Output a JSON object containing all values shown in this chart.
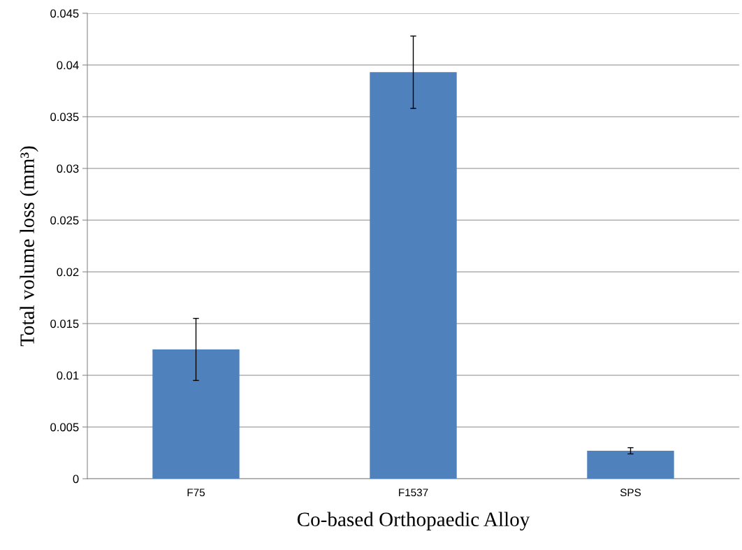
{
  "chart_data": {
    "type": "bar",
    "xlabel": "Co-based Orthopaedic Alloy",
    "ylabel": "Total volume loss (mm³)",
    "categories": [
      "F75",
      "F1537",
      "SPS"
    ],
    "values": [
      0.0125,
      0.0393,
      0.0027
    ],
    "errors": [
      0.003,
      0.0035,
      0.0003
    ],
    "color": "#4f81bd",
    "ylim": [
      0,
      0.045
    ],
    "yticks": [
      {
        "value": 0,
        "label": "0"
      },
      {
        "value": 0.005,
        "label": "0.005"
      },
      {
        "value": 0.01,
        "label": "0.01"
      },
      {
        "value": 0.015,
        "label": "0.015"
      },
      {
        "value": 0.02,
        "label": "0.02"
      },
      {
        "value": 0.025,
        "label": "0.025"
      },
      {
        "value": 0.03,
        "label": "0.03"
      },
      {
        "value": 0.035,
        "label": "0.035"
      },
      {
        "value": 0.04,
        "label": "0.04"
      },
      {
        "value": 0.045,
        "label": "0.045"
      }
    ],
    "grid": "y",
    "legend": false
  }
}
